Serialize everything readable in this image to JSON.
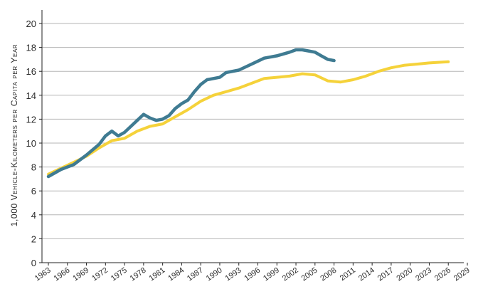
{
  "chart_data": {
    "type": "line",
    "title": "",
    "xlabel": "",
    "ylabel": "1,000 Vehicle-Kilometers per Capita per Year",
    "ylim": [
      0,
      20
    ],
    "xlim": [
      1963,
      2029
    ],
    "yticks": [
      0,
      2,
      4,
      6,
      8,
      10,
      12,
      14,
      16,
      18,
      20
    ],
    "xticks": [
      1963,
      1966,
      1969,
      1972,
      1975,
      1978,
      1981,
      1984,
      1987,
      1990,
      1993,
      1996,
      1999,
      2002,
      2005,
      2008,
      2011,
      2014,
      2017,
      2020,
      2023,
      2026,
      2029
    ],
    "grid": "horizontal",
    "legend": "none",
    "series": [
      {
        "color": "#f5d23a",
        "points": [
          [
            1963,
            7.4
          ],
          [
            1965,
            7.9
          ],
          [
            1967,
            8.4
          ],
          [
            1969,
            8.9
          ],
          [
            1971,
            9.6
          ],
          [
            1973,
            10.2
          ],
          [
            1975,
            10.4
          ],
          [
            1977,
            11.0
          ],
          [
            1979,
            11.4
          ],
          [
            1981,
            11.6
          ],
          [
            1983,
            12.2
          ],
          [
            1985,
            12.8
          ],
          [
            1987,
            13.5
          ],
          [
            1989,
            14.0
          ],
          [
            1991,
            14.3
          ],
          [
            1993,
            14.6
          ],
          [
            1995,
            15.0
          ],
          [
            1997,
            15.4
          ],
          [
            1999,
            15.5
          ],
          [
            2001,
            15.6
          ],
          [
            2003,
            15.8
          ],
          [
            2005,
            15.7
          ],
          [
            2007,
            15.2
          ],
          [
            2009,
            15.1
          ],
          [
            2011,
            15.3
          ],
          [
            2013,
            15.6
          ],
          [
            2015,
            16.0
          ],
          [
            2017,
            16.3
          ],
          [
            2019,
            16.5
          ],
          [
            2021,
            16.6
          ],
          [
            2023,
            16.7
          ],
          [
            2026,
            16.8
          ]
        ]
      },
      {
        "color": "#3f7b92",
        "points": [
          [
            1963,
            7.2
          ],
          [
            1965,
            7.8
          ],
          [
            1967,
            8.2
          ],
          [
            1969,
            9.0
          ],
          [
            1971,
            9.9
          ],
          [
            1972,
            10.6
          ],
          [
            1973,
            11.0
          ],
          [
            1974,
            10.6
          ],
          [
            1975,
            10.9
          ],
          [
            1976,
            11.4
          ],
          [
            1977,
            11.9
          ],
          [
            1978,
            12.4
          ],
          [
            1979,
            12.1
          ],
          [
            1980,
            11.9
          ],
          [
            1981,
            12.0
          ],
          [
            1982,
            12.3
          ],
          [
            1983,
            12.9
          ],
          [
            1984,
            13.3
          ],
          [
            1985,
            13.6
          ],
          [
            1986,
            14.3
          ],
          [
            1987,
            14.9
          ],
          [
            1988,
            15.3
          ],
          [
            1989,
            15.4
          ],
          [
            1990,
            15.5
          ],
          [
            1991,
            15.9
          ],
          [
            1993,
            16.1
          ],
          [
            1995,
            16.6
          ],
          [
            1997,
            17.1
          ],
          [
            1999,
            17.3
          ],
          [
            2001,
            17.6
          ],
          [
            2002,
            17.8
          ],
          [
            2003,
            17.8
          ],
          [
            2004,
            17.7
          ],
          [
            2005,
            17.6
          ],
          [
            2006,
            17.3
          ],
          [
            2007,
            17.0
          ],
          [
            2008,
            16.9
          ]
        ]
      }
    ]
  }
}
